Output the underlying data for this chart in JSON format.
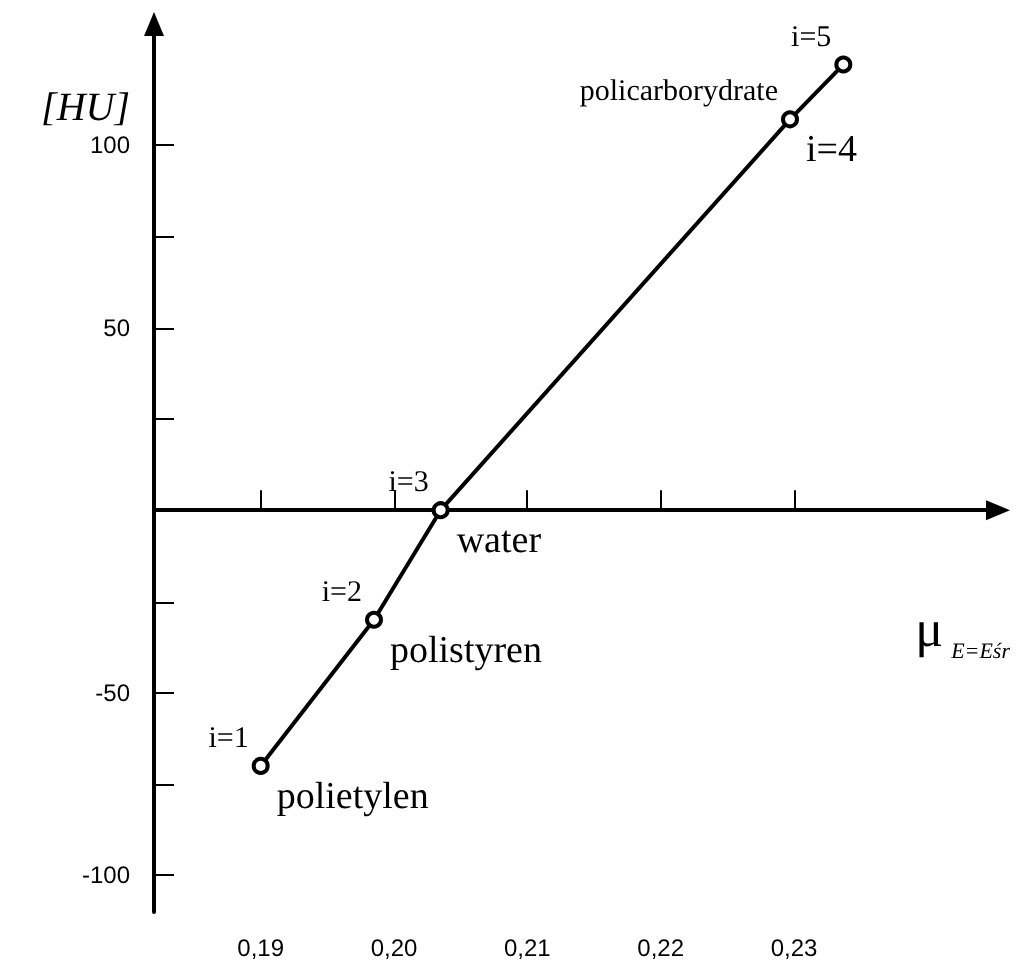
{
  "chart_data": {
    "type": "line",
    "ylabel": "[HU]",
    "xlabel": "μ$_{E=Eśr}$",
    "x": [
      0.19,
      0.1985,
      0.2035,
      0.2297,
      0.2337
    ],
    "series": [
      {
        "color": "#000000",
        "values": [
          -70,
          -30,
          0,
          107,
          122
        ]
      }
    ],
    "xlim": [
      0.182,
      0.245
    ],
    "ylim": [
      -110,
      132
    ],
    "xticks": [
      {
        "value": 0.19,
        "label": "0,19"
      },
      {
        "value": 0.2,
        "label": "0,20"
      },
      {
        "value": 0.21,
        "label": "0,21"
      },
      {
        "value": 0.22,
        "label": "0,22"
      },
      {
        "value": 0.23,
        "label": "0,23"
      }
    ],
    "yticks": [
      -100,
      {
        "value": -75,
        "label": null
      },
      -50,
      {
        "value": -25,
        "label": null
      },
      {
        "value": 0,
        "label": null
      },
      {
        "value": 25,
        "label": null
      },
      50,
      {
        "value": 75,
        "label": null
      },
      100
    ],
    "marker": "circle",
    "annotations": [
      {
        "text": "i=1",
        "x": 0.19,
        "y": -70
      },
      {
        "text": "polietylen",
        "x": 0.19,
        "y": -70
      },
      {
        "text": "i=2",
        "x": 0.1985,
        "y": -30
      },
      {
        "text": "polistyren",
        "x": 0.1985,
        "y": -30
      },
      {
        "text": "i=3",
        "x": 0.2035,
        "y": 0
      },
      {
        "text": "water",
        "x": 0.2035,
        "y": 0
      },
      {
        "text": "policarborydrate",
        "x": 0.2297,
        "y": 107
      },
      {
        "text": "i=4",
        "x": 0.2297,
        "y": 107
      },
      {
        "text": "i=5",
        "x": 0.2337,
        "y": 122
      }
    ]
  }
}
